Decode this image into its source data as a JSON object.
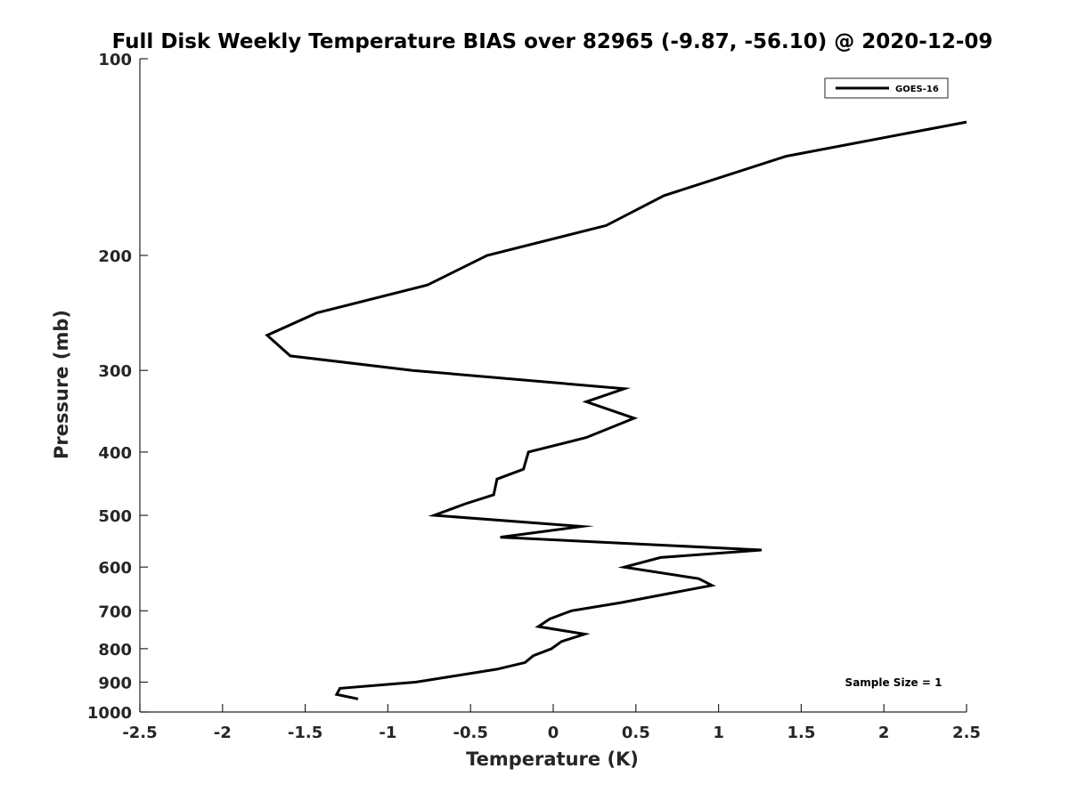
{
  "chart_data": {
    "type": "line",
    "title": "Full Disk Weekly Temperature BIAS over 82965 (-9.87, -56.10) @ 2020-12-09",
    "xlabel": "Temperature (K)",
    "ylabel": "Pressure (mb)",
    "xlim": [
      -2.5,
      2.5
    ],
    "ylim": [
      100,
      1000
    ],
    "yscale": "log",
    "yreversed": true,
    "xticks": [
      "-2.5",
      "-2",
      "-1.5",
      "-1",
      "-0.5",
      "0",
      "0.5",
      "1",
      "1.5",
      "2",
      "2.5"
    ],
    "yticks": [
      "100",
      "200",
      "300",
      "400",
      "500",
      "600",
      "700",
      "800",
      "900",
      "1000"
    ],
    "grid": false,
    "legend_position": "top-right",
    "line_color": "#000000",
    "annotation": "Sample Size = 1",
    "series": [
      {
        "name": "GOES-16",
        "x": [
          2.5,
          1.41,
          0.67,
          0.32,
          -0.4,
          -0.76,
          -1.43,
          -1.73,
          -1.59,
          -0.85,
          0.43,
          0.2,
          0.49,
          0.2,
          -0.15,
          -0.18,
          -0.34,
          -0.36,
          -0.53,
          -0.72,
          0.17,
          -0.32,
          1.26,
          0.65,
          0.43,
          0.88,
          0.96,
          0.41,
          0.11,
          -0.02,
          -0.09,
          0.19,
          0.05,
          -0.01,
          -0.12,
          -0.17,
          -0.34,
          -0.83,
          -1.29,
          -1.31,
          -1.18
        ],
        "y": [
          125,
          141,
          162,
          180,
          200,
          222,
          245,
          265,
          285,
          300,
          320,
          335,
          355,
          380,
          400,
          425,
          440,
          465,
          480,
          500,
          520,
          540,
          565,
          580,
          600,
          625,
          640,
          680,
          700,
          720,
          740,
          760,
          780,
          800,
          820,
          840,
          860,
          900,
          920,
          940,
          955
        ]
      }
    ]
  }
}
